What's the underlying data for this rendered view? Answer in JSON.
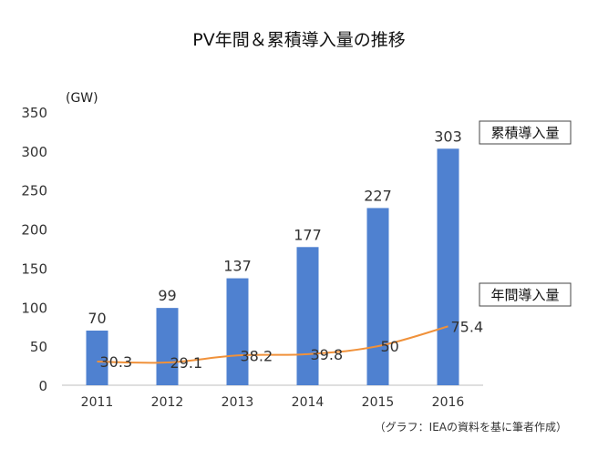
{
  "chart_data": {
    "type": "bar",
    "title": "PV年間＆累積導入量の推移",
    "ylabel": "(GW)",
    "ylim": [
      0,
      350
    ],
    "yticks": [
      0,
      50,
      100,
      150,
      200,
      250,
      300,
      350
    ],
    "categories": [
      "2011",
      "2012",
      "2013",
      "2014",
      "2015",
      "2016"
    ],
    "series": [
      {
        "name": "累積導入量",
        "type": "bar",
        "color": "#4F81D0",
        "values": [
          70,
          99,
          137,
          177,
          227,
          303
        ]
      },
      {
        "name": "年間導入量",
        "type": "line",
        "color": "#F0913A",
        "values": [
          30.3,
          29.1,
          38.2,
          39.8,
          50,
          75.4
        ]
      }
    ],
    "legend": "right, labels beside the series",
    "grid": false,
    "source": "（グラフ：IEAの資料を基に筆者作成）"
  }
}
